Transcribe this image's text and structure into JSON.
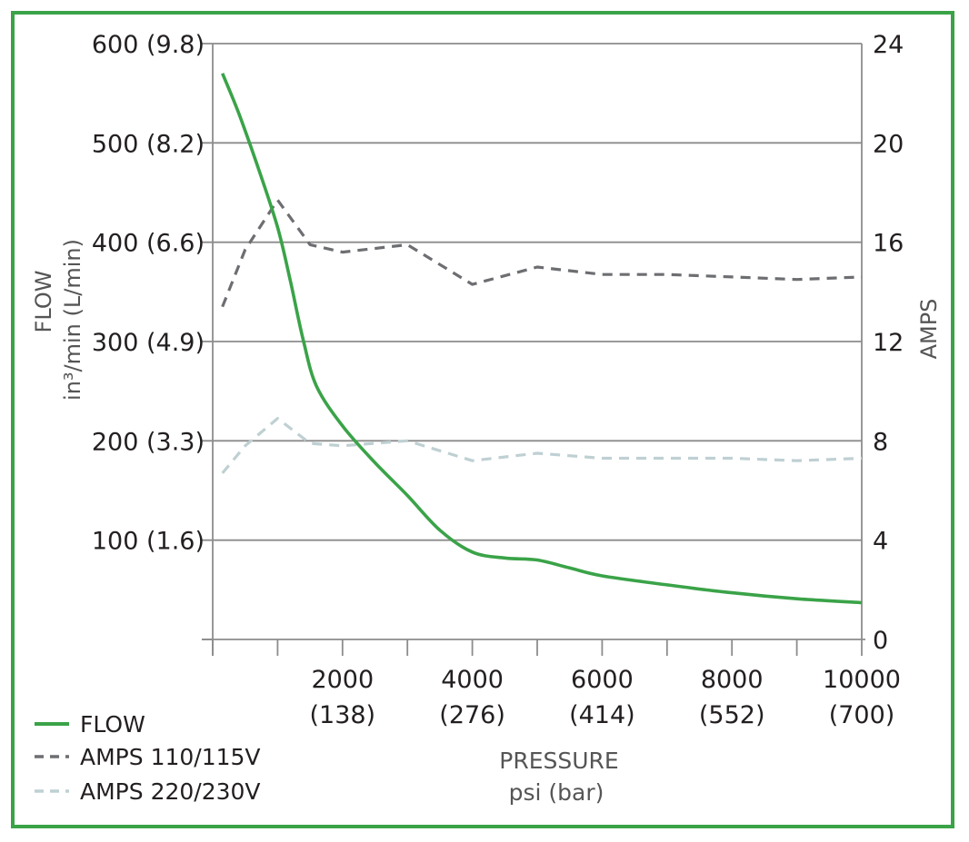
{
  "chart_data": {
    "type": "line",
    "frame_color": "#3aa348",
    "xlabel": [
      "PRESSURE",
      "psi (bar)"
    ],
    "ylabel_left": [
      "FLOW",
      "in³/min (L/min)"
    ],
    "ylabel_right": "AMPS",
    "xlim": [
      0,
      10000
    ],
    "ylim_left": [
      0,
      600
    ],
    "ylim_right": [
      0,
      24
    ],
    "x_ticks": [
      {
        "value": 2000,
        "line1": "2000",
        "line2": "(138)"
      },
      {
        "value": 4000,
        "line1": "4000",
        "line2": "(276)"
      },
      {
        "value": 6000,
        "line1": "6000",
        "line2": "(414)"
      },
      {
        "value": 8000,
        "line1": "8000",
        "line2": "(552)"
      },
      {
        "value": 10000,
        "line1": "10000",
        "line2": "(700)"
      }
    ],
    "x_minor_ticks": [
      0,
      1000,
      2000,
      3000,
      4000,
      5000,
      6000,
      7000,
      8000,
      9000,
      10000
    ],
    "y_left_ticks": [
      {
        "value": 100,
        "label": "100 (1.6)"
      },
      {
        "value": 200,
        "label": "200 (3.3)"
      },
      {
        "value": 300,
        "label": "300 (4.9)"
      },
      {
        "value": 400,
        "label": "400 (6.6)"
      },
      {
        "value": 500,
        "label": "500 (8.2)"
      },
      {
        "value": 600,
        "label": "600 (9.8)"
      }
    ],
    "y_right_ticks": [
      {
        "value": 0,
        "label": "0"
      },
      {
        "value": 4,
        "label": "4"
      },
      {
        "value": 8,
        "label": "8"
      },
      {
        "value": 12,
        "label": "12"
      },
      {
        "value": 16,
        "label": "16"
      },
      {
        "value": 20,
        "label": "20"
      },
      {
        "value": 24,
        "label": "24"
      }
    ],
    "series": [
      {
        "name": "FLOW",
        "axis": "left",
        "color": "#3aa348",
        "dash": "solid",
        "points": [
          [
            150,
            570
          ],
          [
            400,
            530
          ],
          [
            700,
            475
          ],
          [
            1000,
            415
          ],
          [
            1200,
            360
          ],
          [
            1400,
            300
          ],
          [
            1600,
            255
          ],
          [
            2000,
            215
          ],
          [
            2500,
            178
          ],
          [
            3000,
            145
          ],
          [
            3500,
            110
          ],
          [
            4000,
            88
          ],
          [
            4500,
            82
          ],
          [
            5000,
            80
          ],
          [
            5500,
            72
          ],
          [
            6000,
            64
          ],
          [
            7000,
            55
          ],
          [
            8000,
            47
          ],
          [
            9000,
            41
          ],
          [
            10000,
            37
          ]
        ]
      },
      {
        "name": "AMPS 110/115V",
        "axis": "right",
        "color": "#6d6e71",
        "dash": "dashed",
        "points": [
          [
            150,
            13.4
          ],
          [
            500,
            15.7
          ],
          [
            1000,
            17.7
          ],
          [
            1500,
            15.9
          ],
          [
            2000,
            15.6
          ],
          [
            3000,
            15.9
          ],
          [
            4000,
            14.3
          ],
          [
            5000,
            15.0
          ],
          [
            6000,
            14.7
          ],
          [
            7000,
            14.7
          ],
          [
            8000,
            14.6
          ],
          [
            9000,
            14.5
          ],
          [
            10000,
            14.6
          ]
        ]
      },
      {
        "name": "AMPS 220/230V",
        "axis": "right",
        "color": "#bfd0d3",
        "dash": "dashed",
        "points": [
          [
            150,
            6.7
          ],
          [
            500,
            7.8
          ],
          [
            1000,
            8.9
          ],
          [
            1500,
            7.9
          ],
          [
            2000,
            7.8
          ],
          [
            3000,
            8.0
          ],
          [
            4000,
            7.2
          ],
          [
            5000,
            7.5
          ],
          [
            6000,
            7.3
          ],
          [
            7000,
            7.3
          ],
          [
            8000,
            7.3
          ],
          [
            9000,
            7.2
          ],
          [
            10000,
            7.3
          ]
        ]
      }
    ],
    "grid": true,
    "legend": "bottom-left"
  }
}
